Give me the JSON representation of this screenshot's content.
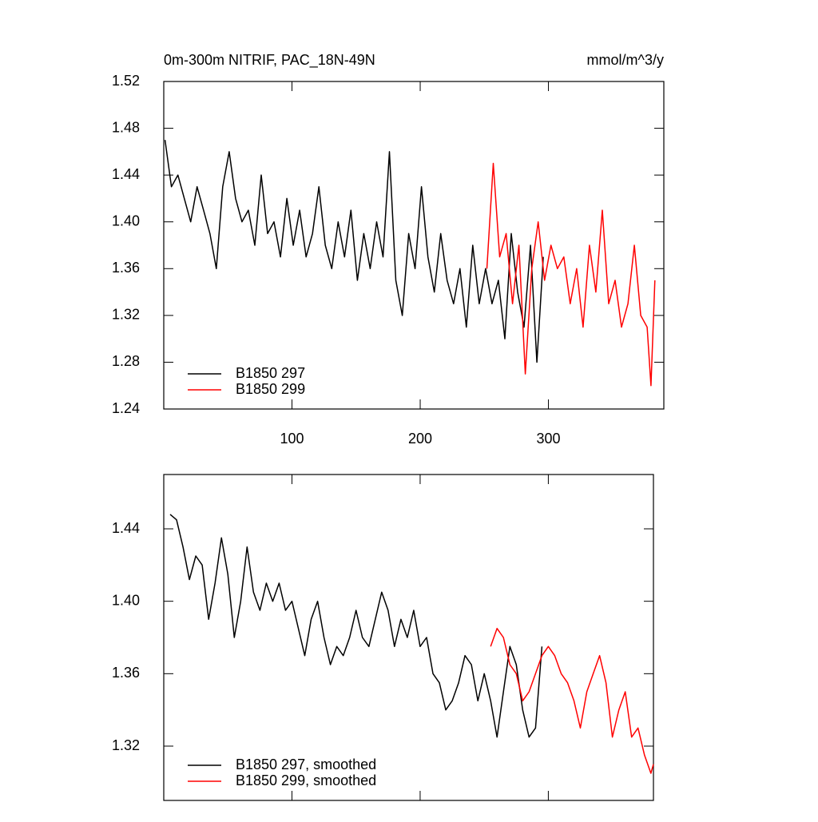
{
  "chart_data": [
    {
      "type": "line",
      "title": "0m-300m NITRIF, PAC_18N-49N",
      "units": "mmol/m^3/y",
      "xlim": [
        0,
        390
      ],
      "xticks": [
        100,
        200,
        300
      ],
      "xtick_labels": true,
      "ylim": [
        1.24,
        1.52
      ],
      "yticks": [
        1.24,
        1.28,
        1.32,
        1.36,
        {
          "value": 1.4,
          "label": "1.40"
        },
        1.44,
        1.48,
        1.52
      ],
      "legend": "lower left",
      "series": [
        {
          "name": "B1850 297",
          "color": "#000000",
          "x": [
            1,
            6,
            11,
            16,
            21,
            26,
            31,
            36,
            41,
            46,
            51,
            56,
            61,
            66,
            71,
            76,
            81,
            86,
            91,
            96,
            101,
            106,
            111,
            116,
            121,
            126,
            131,
            136,
            141,
            146,
            151,
            156,
            161,
            166,
            171,
            176,
            181,
            186,
            191,
            196,
            201,
            206,
            211,
            216,
            221,
            226,
            231,
            236,
            241,
            246,
            251,
            256,
            261,
            266,
            271,
            276,
            281,
            286,
            291,
            296
          ],
          "values": [
            1.47,
            1.43,
            1.44,
            1.42,
            1.4,
            1.43,
            1.41,
            1.39,
            1.36,
            1.43,
            1.46,
            1.42,
            1.4,
            1.41,
            1.38,
            1.44,
            1.39,
            1.4,
            1.37,
            1.42,
            1.38,
            1.41,
            1.37,
            1.39,
            1.43,
            1.38,
            1.36,
            1.4,
            1.37,
            1.41,
            1.35,
            1.39,
            1.36,
            1.4,
            1.37,
            1.46,
            1.35,
            1.32,
            1.39,
            1.36,
            1.43,
            1.37,
            1.34,
            1.39,
            1.35,
            1.33,
            1.36,
            1.31,
            1.38,
            1.33,
            1.36,
            1.33,
            1.35,
            1.3,
            1.39,
            1.34,
            1.31,
            1.38,
            1.28,
            1.37
          ]
        },
        {
          "name": "B1850 299",
          "color": "#ff0000",
          "x": [
            252,
            257,
            262,
            267,
            272,
            277,
            282,
            287,
            292,
            297,
            302,
            307,
            312,
            317,
            322,
            327,
            332,
            337,
            342,
            347,
            352,
            357,
            362,
            367,
            372,
            377,
            380,
            383
          ],
          "values": [
            1.36,
            1.45,
            1.37,
            1.39,
            1.33,
            1.38,
            1.27,
            1.36,
            1.4,
            1.35,
            1.38,
            1.36,
            1.37,
            1.33,
            1.36,
            1.31,
            1.38,
            1.34,
            1.41,
            1.33,
            1.35,
            1.31,
            1.33,
            1.38,
            1.32,
            1.31,
            1.26,
            1.35
          ]
        }
      ]
    },
    {
      "type": "line",
      "xlim": [
        0,
        382
      ],
      "xticks": [
        100,
        200,
        300
      ],
      "xtick_labels": false,
      "ylim": [
        1.29,
        1.47
      ],
      "yticks": [
        1.32,
        1.36,
        {
          "value": 1.4,
          "label": "1.40"
        },
        1.44
      ],
      "legend": "lower left",
      "series": [
        {
          "name": "B1850 297, smoothed",
          "color": "#000000",
          "x": [
            5,
            10,
            15,
            20,
            25,
            30,
            35,
            40,
            45,
            50,
            55,
            60,
            65,
            70,
            75,
            80,
            85,
            90,
            95,
            100,
            105,
            110,
            115,
            120,
            125,
            130,
            135,
            140,
            145,
            150,
            155,
            160,
            165,
            170,
            175,
            180,
            185,
            190,
            195,
            200,
            205,
            210,
            215,
            220,
            225,
            230,
            235,
            240,
            245,
            250,
            255,
            260,
            265,
            270,
            275,
            280,
            285,
            290,
            295
          ],
          "values": [
            1.448,
            1.445,
            1.43,
            1.412,
            1.425,
            1.42,
            1.39,
            1.41,
            1.435,
            1.415,
            1.38,
            1.4,
            1.43,
            1.405,
            1.395,
            1.41,
            1.4,
            1.41,
            1.395,
            1.4,
            1.385,
            1.37,
            1.39,
            1.4,
            1.38,
            1.365,
            1.375,
            1.37,
            1.38,
            1.395,
            1.38,
            1.375,
            1.39,
            1.405,
            1.395,
            1.375,
            1.39,
            1.38,
            1.395,
            1.375,
            1.38,
            1.36,
            1.355,
            1.34,
            1.345,
            1.355,
            1.37,
            1.365,
            1.345,
            1.36,
            1.345,
            1.325,
            1.35,
            1.375,
            1.365,
            1.34,
            1.325,
            1.33,
            1.375
          ]
        },
        {
          "name": "B1850 299, smoothed",
          "color": "#ff0000",
          "x": [
            255,
            260,
            265,
            270,
            275,
            280,
            285,
            290,
            295,
            300,
            305,
            310,
            315,
            320,
            325,
            330,
            335,
            340,
            345,
            350,
            355,
            360,
            365,
            370,
            375,
            380,
            382
          ],
          "values": [
            1.375,
            1.385,
            1.38,
            1.365,
            1.36,
            1.345,
            1.35,
            1.36,
            1.37,
            1.375,
            1.37,
            1.36,
            1.355,
            1.345,
            1.33,
            1.35,
            1.36,
            1.37,
            1.355,
            1.325,
            1.34,
            1.35,
            1.325,
            1.33,
            1.315,
            1.305,
            1.31
          ]
        }
      ]
    }
  ]
}
